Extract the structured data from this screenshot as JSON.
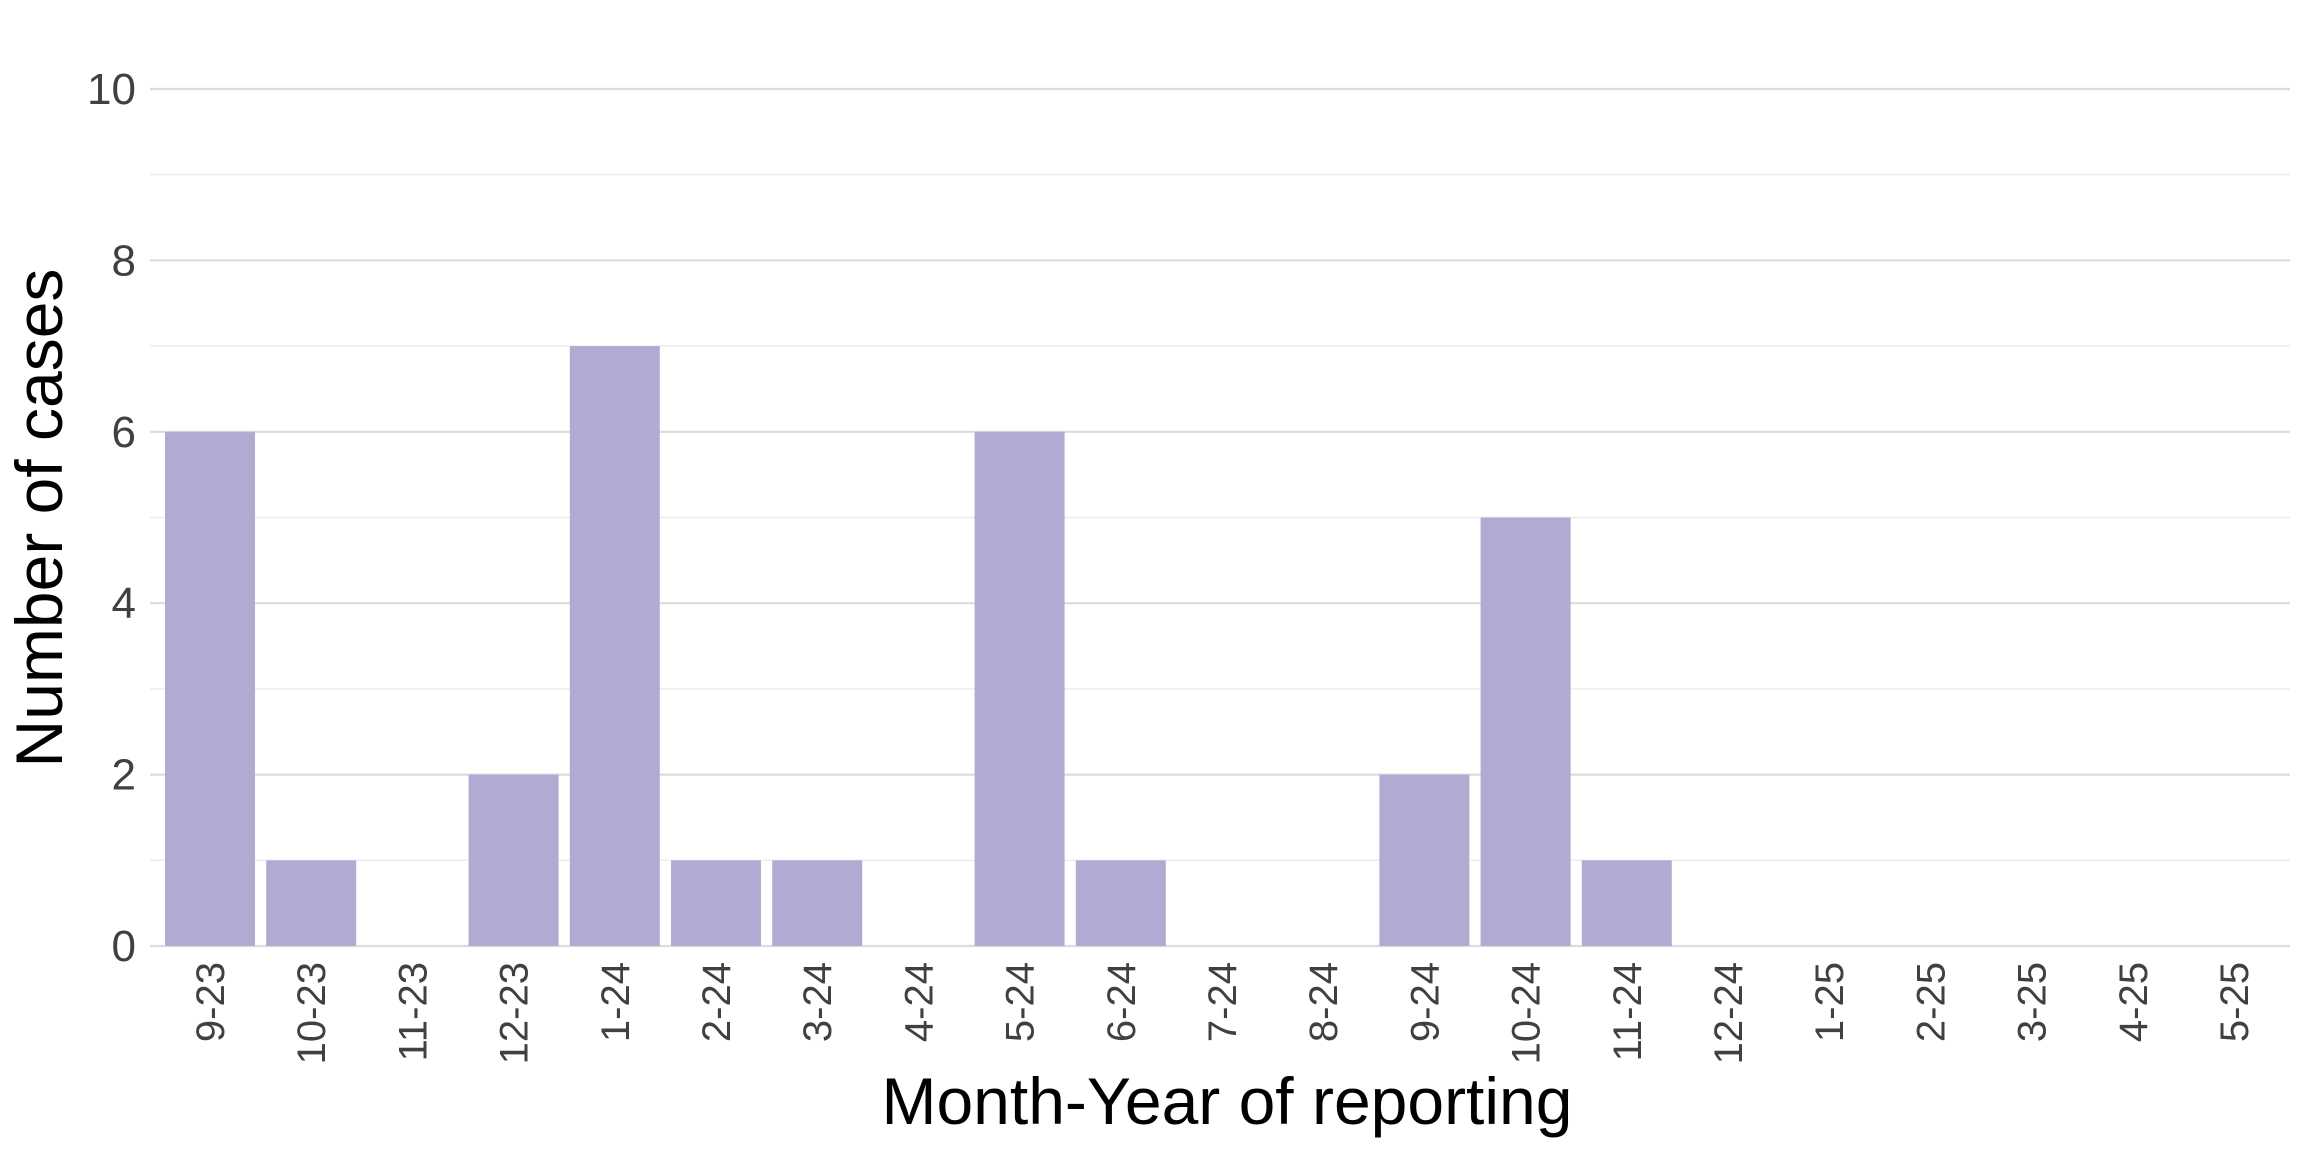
{
  "chart_data": {
    "type": "bar",
    "title": "",
    "xlabel": "Month-Year of reporting",
    "ylabel": "Number of cases",
    "categories": [
      "9-23",
      "10-23",
      "11-23",
      "12-23",
      "1-24",
      "2-24",
      "3-24",
      "4-24",
      "5-24",
      "6-24",
      "7-24",
      "8-24",
      "9-24",
      "10-24",
      "11-24",
      "12-24",
      "1-25",
      "2-25",
      "3-25",
      "4-25",
      "5-25"
    ],
    "values": [
      6,
      1,
      0,
      2,
      7,
      1,
      1,
      0,
      6,
      1,
      0,
      0,
      2,
      5,
      1,
      0,
      0,
      0,
      0,
      0,
      0
    ],
    "ylim": [
      0,
      10
    ],
    "yticks": [
      0,
      2,
      4,
      6,
      8,
      10
    ],
    "grid": true,
    "bar_color": "#b0abd2"
  }
}
